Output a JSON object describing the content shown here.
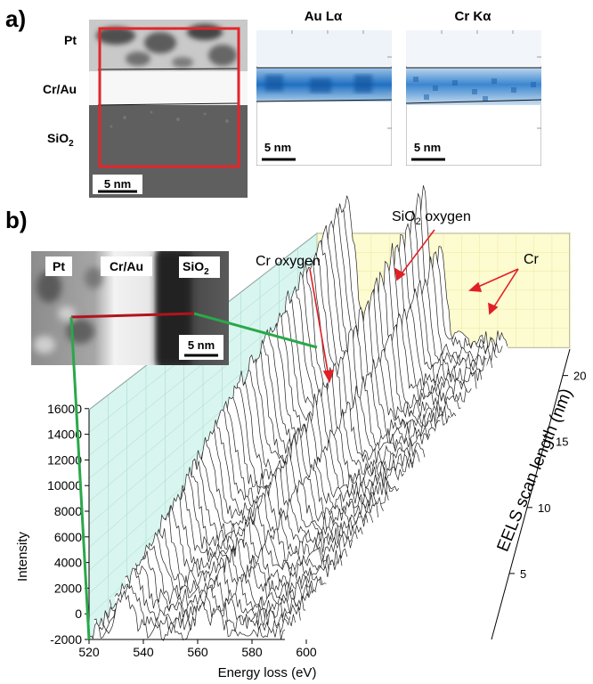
{
  "panel_a": {
    "letter": "a)",
    "layers": [
      "Pt",
      "Cr/Au",
      "SiO",
      "2"
    ],
    "scalebar": "5 nm",
    "maps": [
      {
        "title": "Au Lα",
        "scalebar": "5 nm"
      },
      {
        "title": "Cr Kα",
        "scalebar": "5 nm"
      }
    ],
    "colors": {
      "frame": "#e3262a",
      "map_blue": "#1f6fc2"
    }
  },
  "panel_b": {
    "letter": "b)",
    "inset_labels": [
      "Pt",
      "Cr/Au",
      "SiO",
      "2"
    ],
    "inset_scalebar": "5 nm",
    "annotations": {
      "sio2_oxygen_a": "SiO",
      "sio2_oxygen_sub": "2",
      "sio2_oxygen_b": " oxygen",
      "cr_oxygen": "Cr oxygen",
      "cr": "Cr"
    },
    "colors": {
      "scan_line": "#b0141c",
      "guide_line": "#2aa84a",
      "side_wall": "#d9f5ef",
      "back_wall": "#fdfbd0",
      "arrow": "#e01f26"
    }
  },
  "chart_data": {
    "type": "line",
    "title": "",
    "xlabel": "Energy loss (eV)",
    "ylabel": "Intensity",
    "zlabel": "EELS scan length (nm)",
    "x_ticks": [
      "520",
      "540",
      "560",
      "580",
      "600"
    ],
    "y_ticks": [
      "-2000",
      "0",
      "2000",
      "4000",
      "6000",
      "8000",
      "10000",
      "12000",
      "14000",
      "16000"
    ],
    "z_ticks": [
      "5",
      "10",
      "15",
      "20"
    ],
    "xlim": [
      520,
      620
    ],
    "ylim": [
      -2000,
      16000
    ],
    "zlim": [
      0,
      22
    ],
    "series_count": 44,
    "peaks_eV": {
      "cr_oxygen": 531,
      "sio2_oxygen": 538,
      "cr_L3": 577,
      "cr_L2": 586
    },
    "description_of_series": "stacked EELS spectra along scan; oxygen and Cr L-edge peaks rise toward larger scan length"
  }
}
